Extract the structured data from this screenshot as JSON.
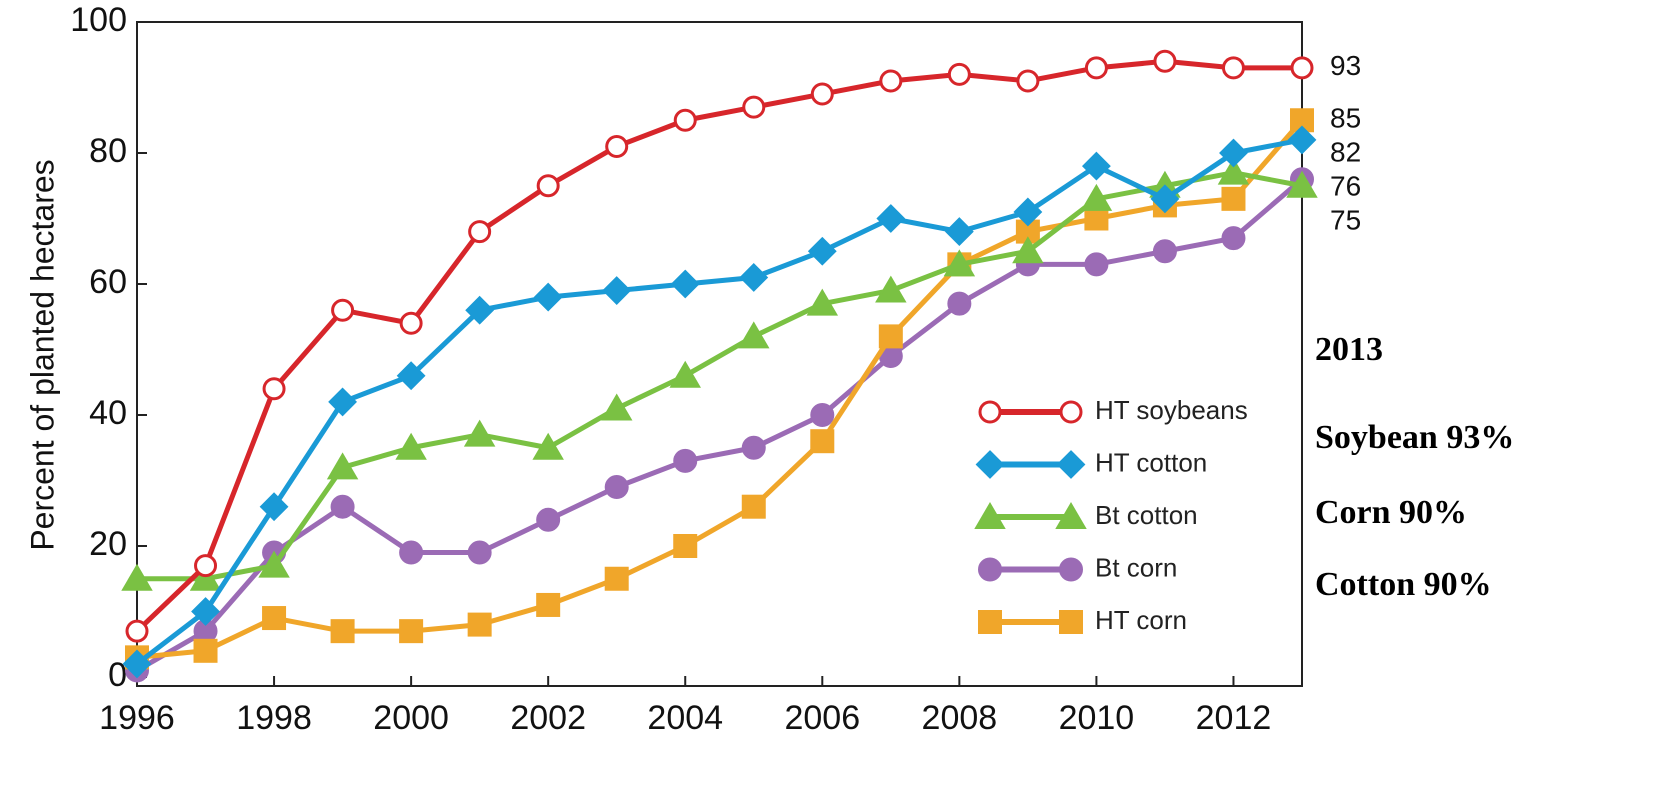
{
  "chart_data": {
    "type": "line",
    "y_label": "Percent of planted hectares",
    "x": [
      1996,
      1997,
      1998,
      1999,
      2000,
      2001,
      2002,
      2003,
      2004,
      2005,
      2006,
      2007,
      2008,
      2009,
      2010,
      2011,
      2012,
      2013
    ],
    "xlim": [
      1996,
      2013
    ],
    "xticks": [
      1996,
      1998,
      2000,
      2002,
      2004,
      2006,
      2008,
      2010,
      2012
    ],
    "ylim": [
      0,
      100
    ],
    "yticks": [
      0,
      20,
      40,
      60,
      80,
      100
    ],
    "legend": "lower right",
    "series": [
      {
        "name": "HT soybeans",
        "color": "#d7262b",
        "marker": "open-circle",
        "values": [
          7,
          17,
          44,
          56,
          54,
          68,
          75,
          81,
          85,
          87,
          89,
          91,
          92,
          91,
          93,
          94,
          93,
          93
        ]
      },
      {
        "name": "HT cotton",
        "color": "#1a9ad6",
        "marker": "diamond",
        "values": [
          2,
          10,
          26,
          42,
          46,
          56,
          58,
          59,
          60,
          61,
          65,
          70,
          68,
          71,
          78,
          73,
          80,
          82
        ]
      },
      {
        "name": "Bt cotton",
        "color": "#7ac143",
        "marker": "triangle",
        "values": [
          15,
          15,
          17,
          32,
          35,
          37,
          35,
          41,
          46,
          52,
          57,
          59,
          63,
          65,
          73,
          75,
          77,
          75
        ]
      },
      {
        "name": "Bt corn",
        "color": "#9b6bb5",
        "marker": "circle",
        "values": [
          1,
          7,
          19,
          26,
          19,
          19,
          24,
          29,
          33,
          35,
          40,
          49,
          57,
          63,
          63,
          65,
          67,
          76
        ]
      },
      {
        "name": "HT corn",
        "color": "#f0a62a",
        "marker": "square",
        "values": [
          3,
          4,
          9,
          7,
          7,
          8,
          11,
          15,
          20,
          26,
          36,
          52,
          63,
          68,
          70,
          72,
          73,
          85
        ]
      }
    ],
    "annotations": [
      "2013",
      "Soybean 93%",
      "Corn 90%",
      "Cotton 90%"
    ]
  }
}
